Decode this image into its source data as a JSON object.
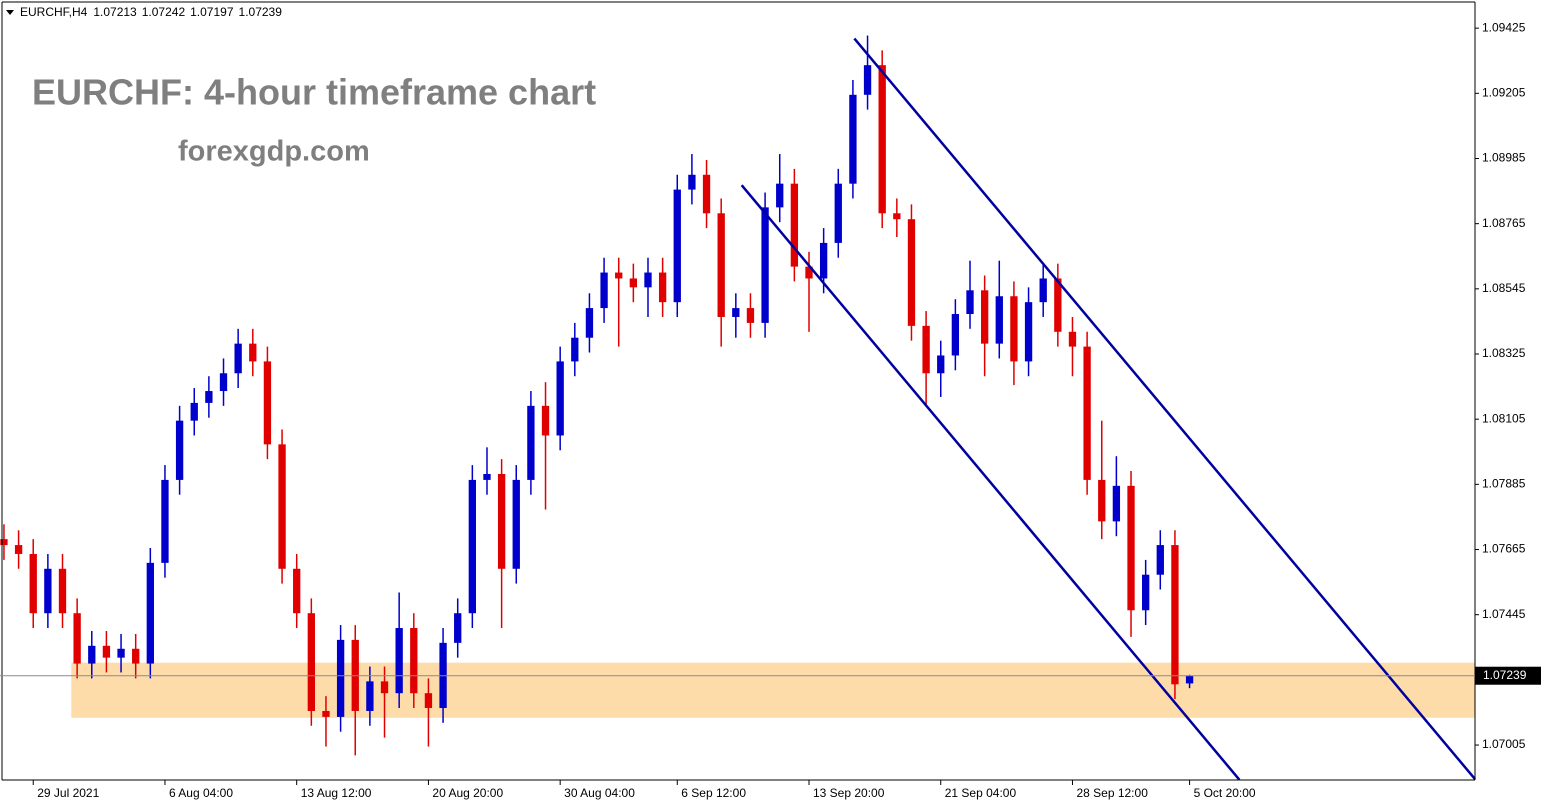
{
  "chart_data": {
    "type": "candlestick",
    "symbol": "EURCHF,H4",
    "title": "EURCHF: 4-hour timeframe chart",
    "subtitle": "forexgdp.com",
    "open": [
      1.077,
      1.0768,
      1.0765,
      1.0745,
      1.076,
      1.0745,
      1.0728,
      1.0734,
      1.073,
      1.0733,
      1.0728,
      1.0762,
      1.079,
      1.081,
      1.0816,
      1.082,
      1.0826,
      1.0836,
      1.083,
      1.0802,
      1.076,
      1.0745,
      1.0712,
      1.071,
      1.0736,
      1.0712,
      1.0722,
      1.0718,
      1.074,
      1.0718,
      1.0713,
      1.0735,
      1.0745,
      1.079,
      1.0792,
      1.076,
      1.079,
      1.0815,
      1.0805,
      1.083,
      1.0838,
      1.0848,
      1.086,
      1.0858,
      1.0855,
      1.086,
      1.085,
      1.0888,
      1.0893,
      1.088,
      1.0845,
      1.0848,
      1.0843,
      1.0882,
      1.089,
      1.0862,
      1.0858,
      1.087,
      1.089,
      1.092,
      1.093,
      1.088,
      1.0878,
      1.0842,
      1.0826,
      1.0832,
      1.0846,
      1.0854,
      1.0836,
      1.0852,
      1.083,
      1.085,
      1.0858,
      1.084,
      1.0835,
      1.079,
      1.0776,
      1.0788,
      1.0746,
      1.0758,
      1.0768,
      1.07213
    ],
    "high": [
      1.0775,
      1.0773,
      1.077,
      1.0765,
      1.0765,
      1.075,
      1.0739,
      1.0739,
      1.0738,
      1.0738,
      1.0767,
      1.0795,
      1.0815,
      1.0821,
      1.0825,
      1.0831,
      1.0841,
      1.0841,
      1.0835,
      1.0807,
      1.0765,
      1.075,
      1.0717,
      1.0741,
      1.0741,
      1.0727,
      1.0727,
      1.0752,
      1.0745,
      1.0723,
      1.074,
      1.075,
      1.0795,
      1.0801,
      1.0797,
      1.0795,
      1.082,
      1.0823,
      1.0835,
      1.0843,
      1.0853,
      1.0865,
      1.0865,
      1.0863,
      1.0865,
      1.0865,
      1.0893,
      1.09,
      1.0898,
      1.0885,
      1.0853,
      1.0853,
      1.0887,
      1.09,
      1.0895,
      1.0867,
      1.0875,
      1.0895,
      1.0925,
      1.094,
      1.0935,
      1.0885,
      1.0883,
      1.0847,
      1.0837,
      1.0851,
      1.0864,
      1.0859,
      1.0864,
      1.0857,
      1.0855,
      1.0863,
      1.0863,
      1.0845,
      1.084,
      1.081,
      1.0798,
      1.0793,
      1.0763,
      1.0773,
      1.0773,
      1.07242
    ],
    "low": [
      1.0763,
      1.076,
      1.074,
      1.074,
      1.074,
      1.0723,
      1.0723,
      1.0725,
      1.0725,
      1.0723,
      1.0723,
      1.0757,
      1.0785,
      1.0805,
      1.0811,
      1.0815,
      1.0821,
      1.0825,
      1.0797,
      1.0755,
      1.074,
      1.0707,
      1.07,
      1.0705,
      1.0697,
      1.0707,
      1.0703,
      1.0713,
      1.0713,
      1.07,
      1.0708,
      1.073,
      1.074,
      1.0785,
      1.074,
      1.0755,
      1.0785,
      1.078,
      1.08,
      1.0825,
      1.0833,
      1.0843,
      1.0835,
      1.085,
      1.0845,
      1.0845,
      1.0845,
      1.0883,
      1.0875,
      1.0835,
      1.0838,
      1.0838,
      1.0838,
      1.0877,
      1.0857,
      1.084,
      1.0853,
      1.0865,
      1.0885,
      1.0915,
      1.0875,
      1.0872,
      1.0837,
      1.0815,
      1.0818,
      1.0827,
      1.0841,
      1.0825,
      1.0831,
      1.0822,
      1.0825,
      1.0845,
      1.0835,
      1.0825,
      1.0785,
      1.077,
      1.0771,
      1.0737,
      1.0741,
      1.0753,
      1.0716,
      1.07197
    ],
    "close": [
      1.0768,
      1.0765,
      1.0745,
      1.076,
      1.0745,
      1.0728,
      1.0734,
      1.073,
      1.0733,
      1.0728,
      1.0762,
      1.079,
      1.081,
      1.0816,
      1.082,
      1.0826,
      1.0836,
      1.083,
      1.0802,
      1.076,
      1.0745,
      1.0712,
      1.071,
      1.0736,
      1.0712,
      1.0722,
      1.0718,
      1.074,
      1.0718,
      1.0713,
      1.0735,
      1.0745,
      1.079,
      1.0792,
      1.076,
      1.079,
      1.0815,
      1.0805,
      1.083,
      1.0838,
      1.0848,
      1.086,
      1.0858,
      1.0855,
      1.086,
      1.085,
      1.0888,
      1.0893,
      1.088,
      1.0845,
      1.0848,
      1.0843,
      1.0882,
      1.089,
      1.0862,
      1.0858,
      1.087,
      1.089,
      1.092,
      1.093,
      1.088,
      1.0878,
      1.0842,
      1.0826,
      1.0832,
      1.0846,
      1.0854,
      1.0836,
      1.0852,
      1.083,
      1.085,
      1.0858,
      1.084,
      1.0835,
      1.079,
      1.0776,
      1.0788,
      1.0746,
      1.0758,
      1.0768,
      1.0721,
      1.07239
    ],
    "up_color": "#0000cc",
    "down_color": "#e00000",
    "xlim": [
      -0.27,
      100.5
    ],
    "ylim": [
      1.06887,
      1.0952
    ],
    "yticks": [
      1.09425,
      1.09205,
      1.08985,
      1.08765,
      1.08545,
      1.08325,
      1.08105,
      1.07885,
      1.07665,
      1.07445,
      1.07005
    ],
    "xticks": [
      {
        "value": 2,
        "label": "29 Jul 2021"
      },
      {
        "value": 11,
        "label": "6 Aug 04:00"
      },
      {
        "value": 20,
        "label": "13 Aug 12:00"
      },
      {
        "value": 29,
        "label": "20 Aug 20:00"
      },
      {
        "value": 38,
        "label": "30 Aug 04:00"
      },
      {
        "value": 46,
        "label": "6 Sep 12:00"
      },
      {
        "value": 55,
        "label": "13 Sep 20:00"
      },
      {
        "value": 64,
        "label": "21 Sep 04:00"
      },
      {
        "value": 73,
        "label": "28 Sep 12:00"
      },
      {
        "value": 81,
        "label": "5 Oct 20:00"
      }
    ],
    "zone": {
      "low": 1.07097,
      "high": 1.07283,
      "start": 4.6,
      "color": "#fddcaa"
    },
    "trendlines": [
      {
        "x": [
          58.1,
          100.5
        ],
        "y": [
          1.0939,
          1.0689
        ],
        "color": "#0000a0"
      },
      {
        "x": [
          50.4,
          84.4
        ],
        "y": [
          1.08895,
          1.06888
        ],
        "color": "#0000a0"
      }
    ]
  }
}
